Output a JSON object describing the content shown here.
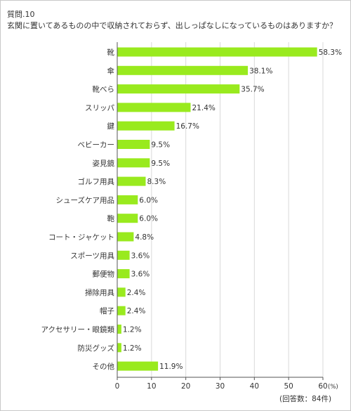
{
  "header": {
    "question_label": "質問.10",
    "question_text": "玄関に置いてあるものの中で収納されておらず、出しっぱなしになっているものはありますか？"
  },
  "chart_data": {
    "type": "bar",
    "orientation": "horizontal",
    "categories": [
      "靴",
      "傘",
      "靴べら",
      "スリッパ",
      "鍵",
      "ベビーカー",
      "姿見鏡",
      "ゴルフ用具",
      "シューズケア用品",
      "鞄",
      "コート・ジャケット",
      "スポーツ用具",
      "郵便物",
      "掃除用具",
      "帽子",
      "アクセサリー・眼鏡類",
      "防災グッズ",
      "その他"
    ],
    "values": [
      58.3,
      38.1,
      35.7,
      21.4,
      16.7,
      9.5,
      9.5,
      8.3,
      6.0,
      6.0,
      4.8,
      3.6,
      3.6,
      2.4,
      2.4,
      1.2,
      1.2,
      11.9
    ],
    "value_labels": [
      "58.3%",
      "38.1%",
      "35.7%",
      "21.4%",
      "16.7%",
      "9.5%",
      "9.5%",
      "8.3%",
      "6.0%",
      "6.0%",
      "4.8%",
      "3.6%",
      "3.6%",
      "2.4%",
      "2.4%",
      "1.2%",
      "1.2%",
      "11.9%"
    ],
    "xlim": [
      0,
      60
    ],
    "x_ticks": [
      0,
      10,
      20,
      30,
      40,
      50,
      60
    ],
    "x_tick_labels": [
      "0",
      "10",
      "20",
      "30",
      "40",
      "50",
      "60"
    ],
    "x_unit": "(%)",
    "grid": "vertical",
    "bar_color": "#99ea1e",
    "grid_color": "#d9d9d9",
    "axis_color": "#555555"
  },
  "footer": {
    "note": "(回答数：84件)"
  }
}
